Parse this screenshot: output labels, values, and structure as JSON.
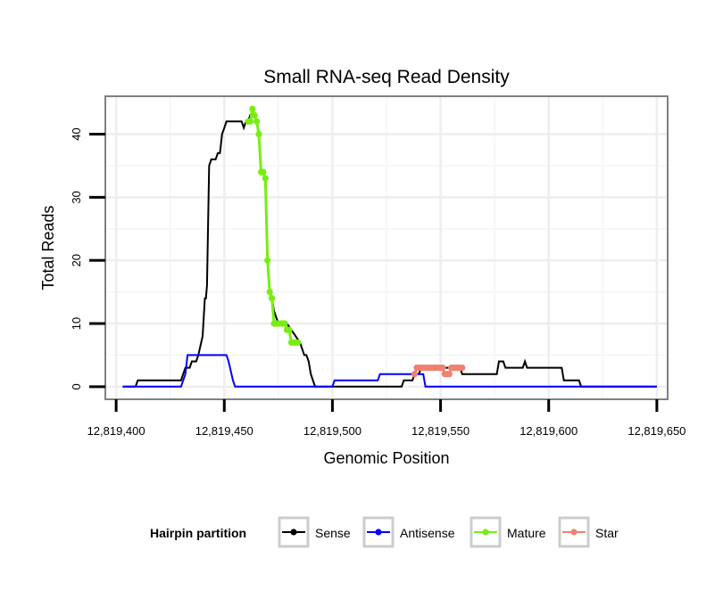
{
  "chart_data": {
    "type": "line",
    "title": "Small RNA-seq Read Density",
    "xlabel": "Genomic Position",
    "ylabel": "Total Reads",
    "xlim": [
      12819395,
      12819655
    ],
    "ylim": [
      -2,
      46
    ],
    "x_ticks": [
      12819400,
      12819450,
      12819500,
      12819550,
      12819600,
      12819650
    ],
    "x_tick_labels": [
      "12,819,400",
      "12,819,450",
      "12,819,500",
      "12,819,550",
      "12,819,600",
      "12,819,650"
    ],
    "y_ticks": [
      0,
      10,
      20,
      30,
      40
    ],
    "y_tick_labels": [
      "0",
      "10",
      "20",
      "30",
      "40"
    ],
    "grid": true,
    "legend": {
      "title": "Hairpin partition",
      "position": "bottom",
      "entries": [
        {
          "name": "Sense",
          "color": "#000000"
        },
        {
          "name": "Antisense",
          "color": "#0000ff"
        },
        {
          "name": "Mature",
          "color": "#77ee11"
        },
        {
          "name": "Star",
          "color": "#f08070"
        }
      ]
    },
    "series": [
      {
        "name": "Sense",
        "color": "#000000",
        "kind": "line",
        "x": [
          12819403,
          12819409,
          12819410,
          12819430,
          12819431,
          12819432,
          12819434,
          12819435,
          12819437,
          12819438,
          12819440,
          12819441,
          12819441.5,
          12819442,
          12819443,
          12819444,
          12819445,
          12819446,
          12819447,
          12819448,
          12819449,
          12819450,
          12819451,
          12819452,
          12819453,
          12819454,
          12819455,
          12819456,
          12819457,
          12819458,
          12819459,
          12819460,
          12819461,
          12819462,
          12819463,
          12819464,
          12819465,
          12819466,
          12819467,
          12819468,
          12819469,
          12819470,
          12819471,
          12819472,
          12819473,
          12819475,
          12819477,
          12819479,
          12819481,
          12819483,
          12819485,
          12819487,
          12819488,
          12819489,
          12819490,
          12819492,
          12819493,
          12819494,
          12819532,
          12819533,
          12819535,
          12819537,
          12819538,
          12819540,
          12819541,
          12819559,
          12819560,
          12819576,
          12819577,
          12819579,
          12819580,
          12819588,
          12819589,
          12819590,
          12819591,
          12819606,
          12819607,
          12819614,
          12819615,
          12819650
        ],
        "y": [
          0,
          0,
          1,
          1,
          2,
          3,
          3,
          4,
          4,
          5,
          8,
          14,
          14,
          16,
          35,
          36,
          36,
          36,
          37,
          37,
          40,
          41,
          42,
          42,
          42,
          42,
          42,
          42,
          42,
          42,
          41,
          42,
          42,
          43,
          43,
          43,
          42,
          40,
          34,
          34,
          33,
          20,
          15,
          14,
          12,
          10,
          10,
          10,
          9,
          8,
          7,
          5,
          5,
          4,
          2,
          0,
          0,
          0,
          0,
          1,
          1,
          1,
          2,
          2,
          3,
          3,
          2,
          2,
          4,
          4,
          3,
          3,
          4,
          3,
          3,
          3,
          1,
          1,
          0,
          0
        ]
      },
      {
        "name": "Antisense",
        "color": "#0000ff",
        "kind": "line",
        "x": [
          12819403,
          12819430,
          12819432,
          12819433,
          12819451,
          12819452,
          12819454,
          12819455,
          12819500,
          12819501,
          12819521,
          12819522,
          12819542,
          12819543,
          12819650
        ],
        "y": [
          0,
          0,
          2,
          5,
          5,
          4,
          1,
          0,
          0,
          1,
          1,
          2,
          2,
          0,
          0
        ]
      },
      {
        "name": "Mature",
        "color": "#77ee11",
        "kind": "points",
        "x": [
          12819461,
          12819462,
          12819463,
          12819464,
          12819465,
          12819466,
          12819467,
          12819468,
          12819469,
          12819470,
          12819471,
          12819472,
          12819473,
          12819474,
          12819475,
          12819476,
          12819477,
          12819478,
          12819479,
          12819480,
          12819481,
          12819482,
          12819483,
          12819484
        ],
        "y": [
          42,
          42,
          44,
          43,
          42,
          40,
          34,
          34,
          33,
          20,
          15,
          14,
          10,
          10,
          10,
          10,
          10,
          10,
          9,
          9,
          7,
          7,
          7,
          7
        ]
      },
      {
        "name": "Star",
        "color": "#f08070",
        "kind": "points",
        "x": [
          12819538,
          12819539,
          12819540,
          12819541,
          12819542,
          12819543,
          12819544,
          12819545,
          12819546,
          12819547,
          12819548,
          12819549,
          12819550,
          12819551,
          12819552,
          12819553,
          12819554,
          12819555,
          12819556,
          12819557,
          12819558,
          12819559,
          12819560
        ],
        "y": [
          2,
          3,
          3,
          3,
          3,
          3,
          3,
          3,
          3,
          3,
          3,
          3,
          3,
          3,
          2,
          2,
          2,
          3,
          3,
          3,
          3,
          3,
          3
        ]
      }
    ]
  }
}
